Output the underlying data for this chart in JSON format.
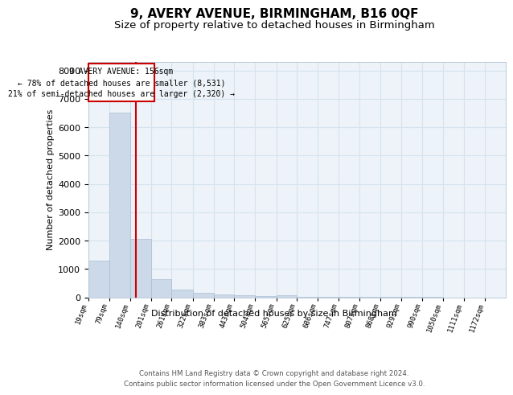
{
  "title": "9, AVERY AVENUE, BIRMINGHAM, B16 0QF",
  "subtitle": "Size of property relative to detached houses in Birmingham",
  "xlabel": "Distribution of detached houses by size in Birmingham",
  "ylabel": "Number of detached properties",
  "bar_color": "#ccd9e8",
  "bar_edge_color": "#aabdd4",
  "grid_color": "#d5e3ef",
  "background_color": "#edf3f8",
  "property_line_x": 156,
  "property_line_color": "#cc0000",
  "annotation_text": "9 AVERY AVENUE: 156sqm\n← 78% of detached houses are smaller (8,531)\n21% of semi-detached houses are larger (2,320) →",
  "annotation_box_color": "#cc0000",
  "bin_edges": [
    19,
    79,
    140,
    201,
    261,
    322,
    383,
    443,
    504,
    565,
    625,
    686,
    747,
    807,
    868,
    929,
    990,
    1050,
    1111,
    1172,
    1232
  ],
  "counts": [
    1280,
    6500,
    2050,
    650,
    280,
    150,
    100,
    80,
    50,
    80,
    10,
    5,
    3,
    2,
    1,
    1,
    1,
    0,
    0,
    0
  ],
  "ylim": [
    0,
    8300
  ],
  "yticks": [
    0,
    1000,
    2000,
    3000,
    4000,
    5000,
    6000,
    7000,
    8000
  ],
  "footer_line1": "Contains HM Land Registry data © Crown copyright and database right 2024.",
  "footer_line2": "Contains public sector information licensed under the Open Government Licence v3.0.",
  "title_fontsize": 11,
  "subtitle_fontsize": 9.5
}
